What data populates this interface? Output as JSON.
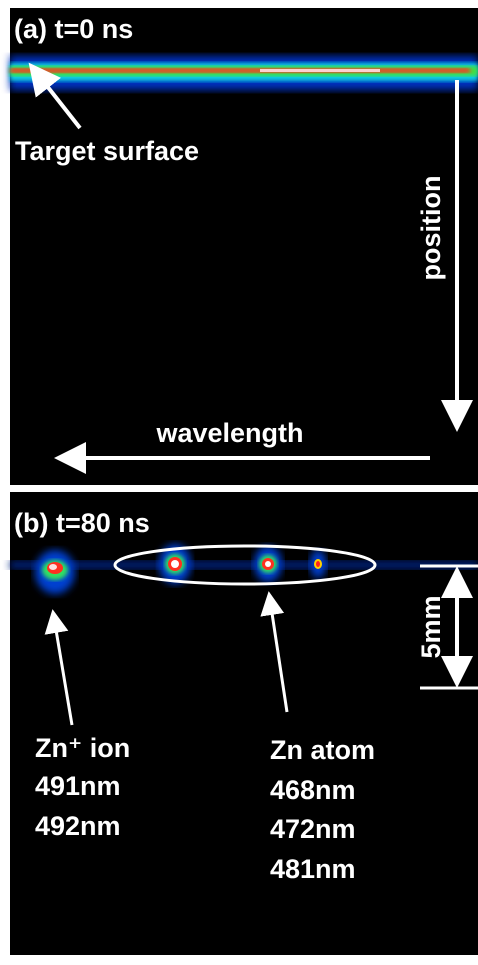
{
  "panel_a": {
    "title": "(a) t=0 ns",
    "annotation": "Target surface",
    "vertical_axis": "position",
    "horizontal_axis": "wavelength"
  },
  "panel_b": {
    "title": "(b) t=80 ns",
    "scale": "5mm",
    "ion_label": {
      "name": "Zn⁺ ion",
      "lines": [
        "491nm",
        "492nm"
      ]
    },
    "atom_label": {
      "name": "Zn atom",
      "lines": [
        "468nm",
        "472nm",
        "481nm"
      ]
    }
  }
}
